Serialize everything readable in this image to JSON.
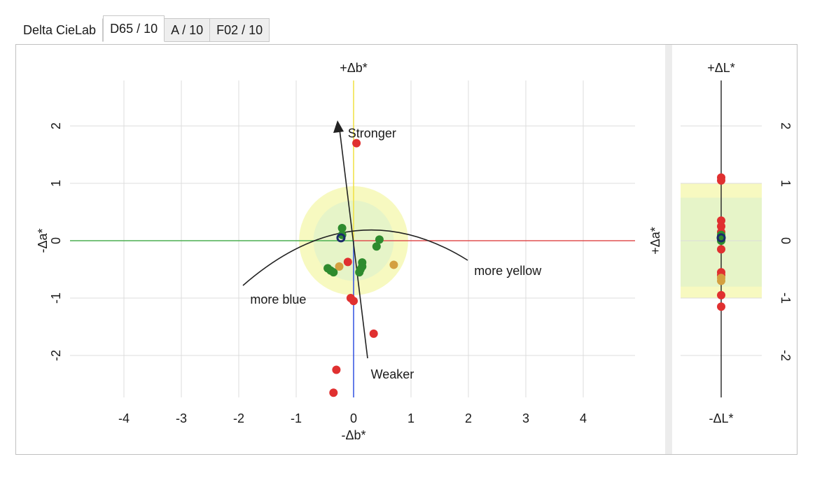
{
  "tabs": [
    {
      "label": "Delta CieLab",
      "active": false,
      "style": "plain"
    },
    {
      "label": "D65 / 10",
      "active": true,
      "style": "active"
    },
    {
      "label": "A / 10",
      "active": false,
      "style": "inactive"
    },
    {
      "label": "F02 / 10",
      "active": false,
      "style": "inactive"
    }
  ],
  "colors": {
    "green_axis": "#4caf50",
    "red_axis": "#e05050",
    "yellow_axis": "#f0e040",
    "blue_axis": "#3050e0",
    "tol_outer": "#f7f9c0",
    "tol_inner": "#e6f4c8",
    "point_red": "#e03030",
    "point_green": "#2e8b2e",
    "point_gold": "#d4a040",
    "point_navy": "#1a2a6a"
  },
  "chart_data": [
    {
      "type": "scatter",
      "x_axis_top_label": "+Δb*",
      "x_axis_bottom_label": "-Δb*",
      "y_axis_label": "-Δa*",
      "xlim": [
        -5,
        5
      ],
      "ylim": [
        -2.7,
        2.7
      ],
      "x_ticks": [
        -4,
        -3,
        -2,
        -1,
        0,
        1,
        2,
        3,
        4
      ],
      "y_ticks": [
        -2,
        -1,
        0,
        1,
        2
      ],
      "grid": true,
      "tolerance_circles": [
        {
          "radius": 0.95
        },
        {
          "radius": 0.7
        }
      ],
      "annotations": [
        {
          "text": "Stronger",
          "x": -0.1,
          "y": 1.8
        },
        {
          "text": "Weaker",
          "x": 0.3,
          "y": -2.4
        },
        {
          "text": "more yellow",
          "x": 2.1,
          "y": -0.6
        },
        {
          "text": "more blue",
          "x": -1.8,
          "y": -1.1
        }
      ],
      "series": [
        {
          "color": "red",
          "points": [
            [
              0.05,
              1.7
            ],
            [
              -0.1,
              -0.37
            ],
            [
              -0.05,
              -1.0
            ],
            [
              0.0,
              -1.05
            ],
            [
              0.35,
              -1.62
            ],
            [
              -0.3,
              -2.25
            ],
            [
              -0.35,
              -2.65
            ]
          ]
        },
        {
          "color": "green",
          "points": [
            [
              -0.2,
              0.22
            ],
            [
              -0.2,
              0.1
            ],
            [
              0.45,
              0.02
            ],
            [
              0.4,
              -0.1
            ],
            [
              -0.45,
              -0.48
            ],
            [
              -0.4,
              -0.52
            ],
            [
              -0.35,
              -0.55
            ],
            [
              0.15,
              -0.38
            ],
            [
              0.15,
              -0.45
            ],
            [
              0.12,
              -0.5
            ],
            [
              0.1,
              -0.55
            ]
          ]
        },
        {
          "color": "gold",
          "points": [
            [
              -0.25,
              -0.45
            ],
            [
              0.7,
              -0.42
            ]
          ]
        },
        {
          "color": "navy",
          "points": [
            [
              -0.22,
              0.05
            ]
          ]
        }
      ]
    },
    {
      "type": "scatter",
      "top_label": "+ΔL*",
      "bottom_label": "-ΔL*",
      "y_axis_label": "+Δa*",
      "ylim": [
        -2.7,
        2.7
      ],
      "y_ticks": [
        -2,
        -1,
        0,
        1,
        2
      ],
      "tolerance_band_outer": [
        -1.0,
        1.0
      ],
      "tolerance_band_inner": [
        -0.8,
        0.75
      ],
      "series": [
        {
          "color": "red",
          "values": [
            1.1,
            1.05,
            0.35,
            0.25,
            0.15,
            -0.15,
            -0.55,
            -0.6,
            -0.95,
            -1.15
          ]
        },
        {
          "color": "green",
          "values": [
            0.1,
            0.0
          ]
        },
        {
          "color": "gold",
          "values": [
            -0.65,
            -0.7
          ]
        },
        {
          "color": "navy",
          "values": [
            0.05
          ]
        }
      ]
    }
  ]
}
